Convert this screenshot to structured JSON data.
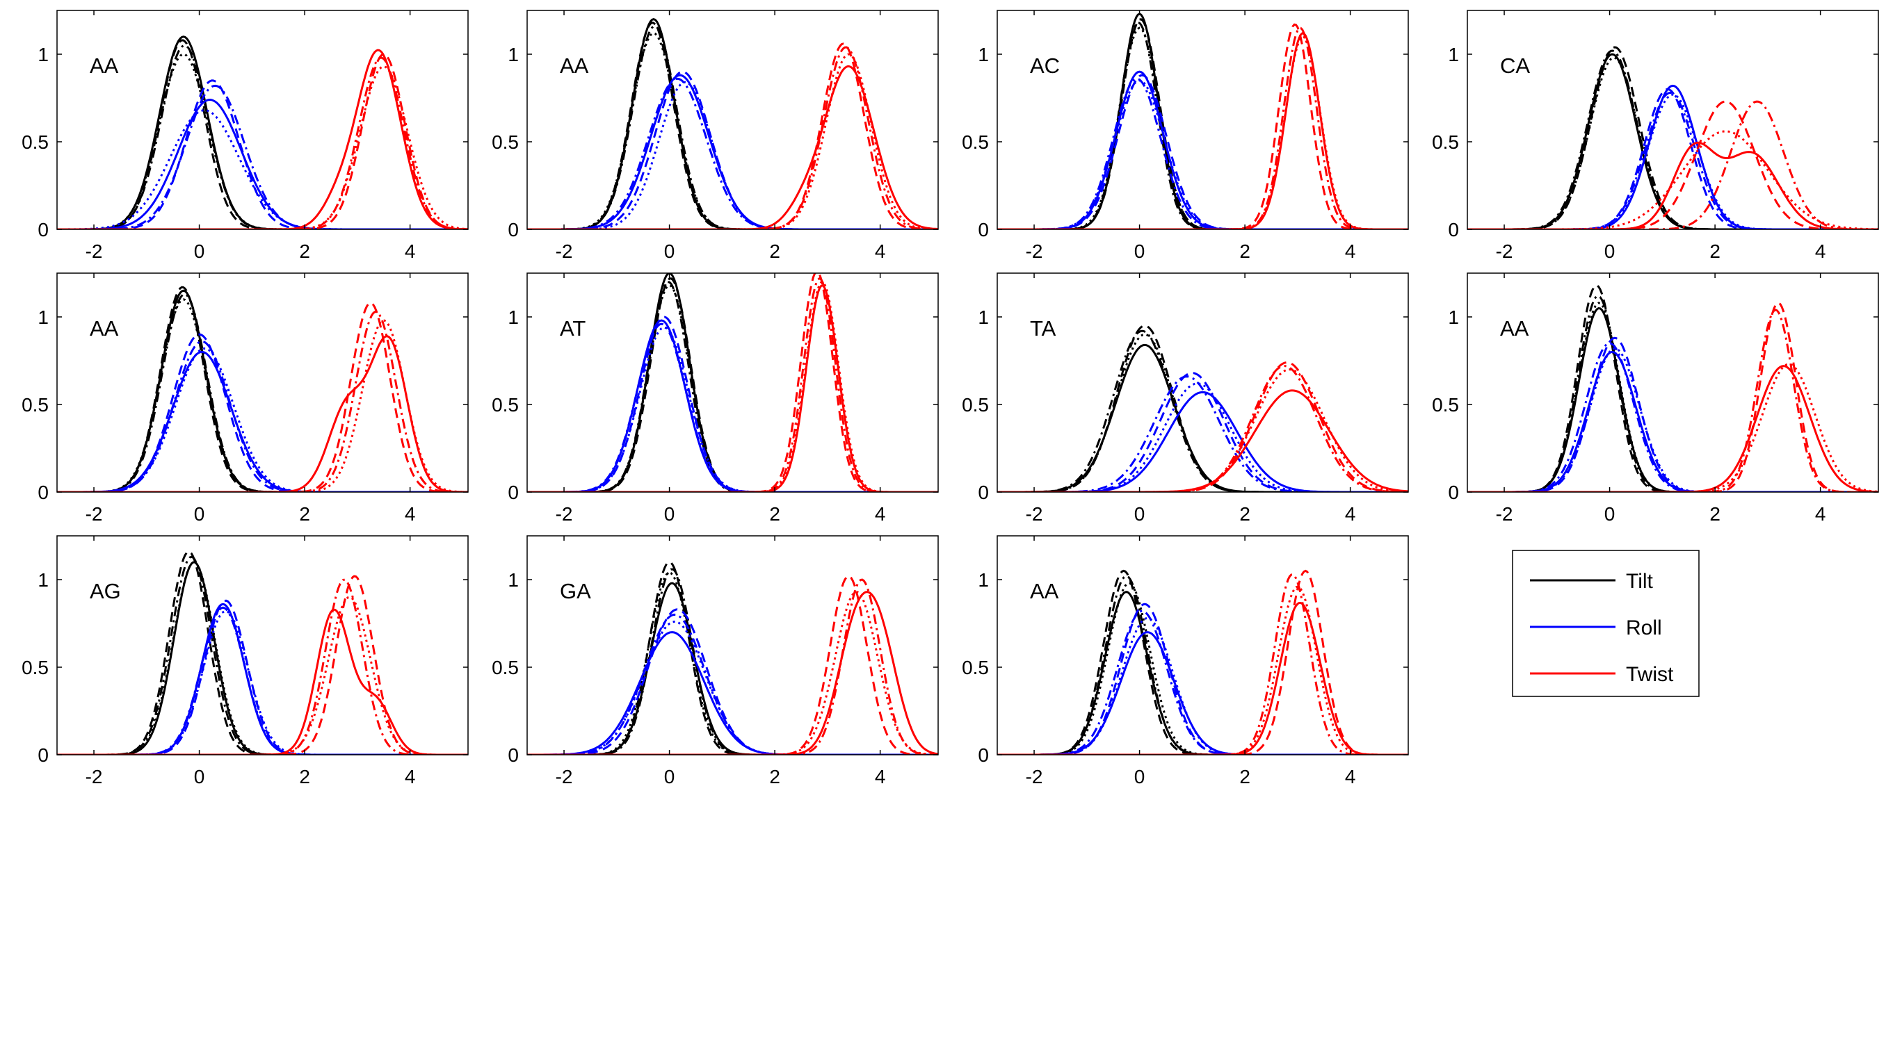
{
  "chart_data": {
    "type": "line",
    "layout": "3 rows x 4 columns of small-multiple panels (11 panels) plus a legend box",
    "xlim": [
      -2.7,
      5.1
    ],
    "ylim": [
      0,
      1.25
    ],
    "xticks": [
      -2,
      0,
      2,
      4
    ],
    "yticks": [
      0,
      0.5,
      1
    ],
    "xtick_labels": [
      "-2",
      "0",
      "2",
      "4"
    ],
    "ytick_labels": [
      "0",
      "0.5",
      "1"
    ],
    "line_styles_per_series": [
      "solid",
      "dashed",
      "dash-dot",
      "dotted"
    ],
    "grid": false,
    "legend": {
      "placement": "row 3, column 4",
      "entries": [
        {
          "label": "Tilt",
          "color": "#000000"
        },
        {
          "label": "Roll",
          "color": "#0000ff"
        },
        {
          "label": "Twist",
          "color": "#ff0000"
        }
      ]
    },
    "panels": [
      {
        "label": "AA",
        "tilt": [
          {
            "m": -0.3,
            "s": 0.45,
            "h": 1.1
          },
          {
            "m": -0.32,
            "s": 0.42,
            "h": 1.08
          },
          {
            "m": -0.28,
            "s": 0.44,
            "h": 1.05
          },
          {
            "m": -0.3,
            "s": 0.46,
            "h": 1.0
          }
        ],
        "roll": [
          {
            "m": 0.2,
            "s": 0.6,
            "h": 0.74
          },
          {
            "m": 0.25,
            "s": 0.5,
            "h": 0.85
          },
          {
            "m": 0.3,
            "s": 0.55,
            "h": 0.82
          },
          {
            "m": 0.1,
            "s": 0.65,
            "h": 0.68
          }
        ],
        "twist": [
          {
            "m": 3.4,
            "s": 0.42,
            "h": 1.02,
            "m2": 2.6,
            "s2": 0.3,
            "h2": 0.12
          },
          {
            "m": 3.5,
            "s": 0.4,
            "h": 1.0
          },
          {
            "m": 3.45,
            "s": 0.42,
            "h": 0.98
          },
          {
            "m": 3.5,
            "s": 0.45,
            "h": 0.93
          }
        ]
      },
      {
        "label": "AA",
        "tilt": [
          {
            "m": -0.3,
            "s": 0.4,
            "h": 1.2
          },
          {
            "m": -0.32,
            "s": 0.4,
            "h": 1.18
          },
          {
            "m": -0.28,
            "s": 0.41,
            "h": 1.16
          },
          {
            "m": -0.3,
            "s": 0.42,
            "h": 1.12
          }
        ],
        "roll": [
          {
            "m": 0.2,
            "s": 0.55,
            "h": 0.88
          },
          {
            "m": 0.25,
            "s": 0.52,
            "h": 0.9
          },
          {
            "m": 0.15,
            "s": 0.55,
            "h": 0.86
          },
          {
            "m": 0.3,
            "s": 0.5,
            "h": 0.84
          }
        ],
        "twist": [
          {
            "m": 3.4,
            "s": 0.48,
            "h": 0.93,
            "m2": 2.5,
            "s2": 0.3,
            "h2": 0.08
          },
          {
            "m": 3.3,
            "s": 0.4,
            "h": 1.06
          },
          {
            "m": 3.35,
            "s": 0.42,
            "h": 1.04
          },
          {
            "m": 3.4,
            "s": 0.43,
            "h": 1.0
          }
        ]
      },
      {
        "label": "AC",
        "tilt": [
          {
            "m": 0.0,
            "s": 0.35,
            "h": 1.23
          },
          {
            "m": 0.02,
            "s": 0.36,
            "h": 1.2
          },
          {
            "m": -0.02,
            "s": 0.35,
            "h": 1.18
          },
          {
            "m": 0.0,
            "s": 0.37,
            "h": 1.15
          }
        ],
        "roll": [
          {
            "m": 0.0,
            "s": 0.45,
            "h": 0.9
          },
          {
            "m": 0.05,
            "s": 0.46,
            "h": 0.88
          },
          {
            "m": -0.05,
            "s": 0.45,
            "h": 0.86
          },
          {
            "m": 0.0,
            "s": 0.47,
            "h": 0.85
          }
        ],
        "twist": [
          {
            "m": 3.1,
            "s": 0.32,
            "h": 1.12
          },
          {
            "m": 2.95,
            "s": 0.3,
            "h": 1.17
          },
          {
            "m": 3.05,
            "s": 0.31,
            "h": 1.15
          },
          {
            "m": 3.1,
            "s": 0.33,
            "h": 1.1
          }
        ]
      },
      {
        "label": "CA",
        "tilt": [
          {
            "m": 0.05,
            "s": 0.45,
            "h": 1.0
          },
          {
            "m": 0.1,
            "s": 0.45,
            "h": 1.04
          },
          {
            "m": 0.05,
            "s": 0.46,
            "h": 1.02
          },
          {
            "m": 0.08,
            "s": 0.45,
            "h": 0.98
          }
        ],
        "roll": [
          {
            "m": 1.2,
            "s": 0.45,
            "h": 0.82
          },
          {
            "m": 1.1,
            "s": 0.44,
            "h": 0.8
          },
          {
            "m": 1.15,
            "s": 0.46,
            "h": 0.78
          },
          {
            "m": 1.2,
            "s": 0.47,
            "h": 0.77
          }
        ],
        "twist": [
          {
            "m": 1.6,
            "s": 0.4,
            "h": 0.45,
            "m2": 2.7,
            "s2": 0.5,
            "h2": 0.43
          },
          {
            "m": 2.2,
            "s": 0.55,
            "h": 0.73
          },
          {
            "m": 2.8,
            "s": 0.5,
            "h": 0.73
          },
          {
            "m": 2.2,
            "s": 0.8,
            "h": 0.56
          }
        ]
      },
      {
        "label": "AA",
        "tilt": [
          {
            "m": -0.3,
            "s": 0.42,
            "h": 1.15
          },
          {
            "m": -0.32,
            "s": 0.41,
            "h": 1.17
          },
          {
            "m": -0.28,
            "s": 0.42,
            "h": 1.13
          },
          {
            "m": -0.3,
            "s": 0.43,
            "h": 1.1
          }
        ],
        "roll": [
          {
            "m": 0.05,
            "s": 0.55,
            "h": 0.8
          },
          {
            "m": 0.0,
            "s": 0.5,
            "h": 0.9
          },
          {
            "m": 0.05,
            "s": 0.52,
            "h": 0.86
          },
          {
            "m": 0.1,
            "s": 0.55,
            "h": 0.82
          }
        ],
        "twist": [
          {
            "m": 3.6,
            "s": 0.35,
            "h": 0.85,
            "m2": 2.8,
            "s2": 0.35,
            "h2": 0.48
          },
          {
            "m": 3.25,
            "s": 0.37,
            "h": 1.08
          },
          {
            "m": 3.35,
            "s": 0.38,
            "h": 1.03
          },
          {
            "m": 3.5,
            "s": 0.4,
            "h": 0.98
          }
        ]
      },
      {
        "label": "AT",
        "tilt": [
          {
            "m": 0.0,
            "s": 0.38,
            "h": 1.25
          },
          {
            "m": 0.02,
            "s": 0.38,
            "h": 1.22
          },
          {
            "m": -0.02,
            "s": 0.38,
            "h": 1.2
          },
          {
            "m": 0.0,
            "s": 0.39,
            "h": 1.18
          }
        ],
        "roll": [
          {
            "m": -0.15,
            "s": 0.45,
            "h": 0.98
          },
          {
            "m": -0.1,
            "s": 0.45,
            "h": 1.0
          },
          {
            "m": -0.15,
            "s": 0.46,
            "h": 0.96
          },
          {
            "m": -0.1,
            "s": 0.46,
            "h": 0.94
          }
        ],
        "twist": [
          {
            "m": 2.9,
            "s": 0.3,
            "h": 1.18
          },
          {
            "m": 2.8,
            "s": 0.3,
            "h": 1.26
          },
          {
            "m": 2.85,
            "s": 0.3,
            "h": 1.22
          },
          {
            "m": 2.9,
            "s": 0.31,
            "h": 1.2
          }
        ]
      },
      {
        "label": "TA",
        "tilt": [
          {
            "m": 0.1,
            "s": 0.55,
            "h": 0.84
          },
          {
            "m": 0.1,
            "s": 0.52,
            "h": 0.95
          },
          {
            "m": 0.05,
            "s": 0.54,
            "h": 0.92
          },
          {
            "m": 0.1,
            "s": 0.53,
            "h": 0.9
          }
        ],
        "roll": [
          {
            "m": 1.2,
            "s": 0.65,
            "h": 0.57
          },
          {
            "m": 1.0,
            "s": 0.6,
            "h": 0.68
          },
          {
            "m": 0.9,
            "s": 0.62,
            "h": 0.66
          },
          {
            "m": 1.1,
            "s": 0.62,
            "h": 0.62
          }
        ],
        "twist": [
          {
            "m": 2.9,
            "s": 0.7,
            "h": 0.58
          },
          {
            "m": 2.8,
            "s": 0.6,
            "h": 0.74
          },
          {
            "m": 2.75,
            "s": 0.6,
            "h": 0.72
          },
          {
            "m": 2.85,
            "s": 0.65,
            "h": 0.7
          }
        ]
      },
      {
        "label": "AA",
        "tilt": [
          {
            "m": -0.2,
            "s": 0.38,
            "h": 1.05
          },
          {
            "m": -0.25,
            "s": 0.36,
            "h": 1.18
          },
          {
            "m": -0.22,
            "s": 0.37,
            "h": 1.12
          },
          {
            "m": -0.2,
            "s": 0.38,
            "h": 1.08
          }
        ],
        "roll": [
          {
            "m": 0.05,
            "s": 0.45,
            "h": 0.8
          },
          {
            "m": 0.1,
            "s": 0.44,
            "h": 0.88
          },
          {
            "m": 0.0,
            "s": 0.45,
            "h": 0.85
          },
          {
            "m": 0.1,
            "s": 0.46,
            "h": 0.82
          }
        ],
        "twist": [
          {
            "m": 3.3,
            "s": 0.5,
            "h": 0.72
          },
          {
            "m": 3.2,
            "s": 0.33,
            "h": 1.08
          },
          {
            "m": 3.15,
            "s": 0.34,
            "h": 1.04
          },
          {
            "m": 3.4,
            "s": 0.5,
            "h": 0.73
          }
        ]
      },
      {
        "label": "AG",
        "tilt": [
          {
            "m": -0.1,
            "s": 0.38,
            "h": 1.1
          },
          {
            "m": -0.2,
            "s": 0.37,
            "h": 1.16
          },
          {
            "m": -0.15,
            "s": 0.38,
            "h": 1.13
          },
          {
            "m": -0.1,
            "s": 0.39,
            "h": 1.1
          }
        ],
        "roll": [
          {
            "m": 0.45,
            "s": 0.4,
            "h": 0.86
          },
          {
            "m": 0.5,
            "s": 0.4,
            "h": 0.88
          },
          {
            "m": 0.45,
            "s": 0.41,
            "h": 0.84
          },
          {
            "m": 0.5,
            "s": 0.42,
            "h": 0.82
          }
        ],
        "twist": [
          {
            "m": 2.55,
            "s": 0.32,
            "h": 0.82,
            "m2": 3.35,
            "s2": 0.3,
            "h2": 0.3
          },
          {
            "m": 2.95,
            "s": 0.35,
            "h": 1.02
          },
          {
            "m": 2.75,
            "s": 0.35,
            "h": 1.0
          },
          {
            "m": 2.85,
            "s": 0.4,
            "h": 0.9
          }
        ]
      },
      {
        "label": "GA",
        "tilt": [
          {
            "m": 0.05,
            "s": 0.4,
            "h": 0.98
          },
          {
            "m": 0.0,
            "s": 0.37,
            "h": 1.1
          },
          {
            "m": 0.05,
            "s": 0.38,
            "h": 1.06
          },
          {
            "m": 0.0,
            "s": 0.39,
            "h": 1.04
          }
        ],
        "roll": [
          {
            "m": 0.05,
            "s": 0.6,
            "h": 0.7
          },
          {
            "m": 0.15,
            "s": 0.55,
            "h": 0.83
          },
          {
            "m": 0.1,
            "s": 0.57,
            "h": 0.8
          },
          {
            "m": 0.1,
            "s": 0.58,
            "h": 0.76
          }
        ],
        "twist": [
          {
            "m": 3.5,
            "s": 0.35,
            "h": 0.6,
            "m2": 4.0,
            "s2": 0.35,
            "h2": 0.6
          },
          {
            "m": 3.4,
            "s": 0.35,
            "h": 1.02
          },
          {
            "m": 3.65,
            "s": 0.35,
            "h": 1.0
          },
          {
            "m": 3.55,
            "s": 0.4,
            "h": 0.93
          }
        ]
      },
      {
        "label": "AA",
        "tilt": [
          {
            "m": -0.25,
            "s": 0.4,
            "h": 0.93
          },
          {
            "m": -0.3,
            "s": 0.38,
            "h": 1.05
          },
          {
            "m": -0.25,
            "s": 0.39,
            "h": 1.02
          },
          {
            "m": -0.2,
            "s": 0.4,
            "h": 0.98
          }
        ],
        "roll": [
          {
            "m": 0.15,
            "s": 0.5,
            "h": 0.7
          },
          {
            "m": 0.1,
            "s": 0.45,
            "h": 0.86
          },
          {
            "m": 0.05,
            "s": 0.47,
            "h": 0.82
          },
          {
            "m": 0.15,
            "s": 0.48,
            "h": 0.78
          }
        ],
        "twist": [
          {
            "m": 3.0,
            "s": 0.35,
            "h": 0.8,
            "m2": 3.4,
            "s2": 0.3,
            "h2": 0.15
          },
          {
            "m": 3.15,
            "s": 0.33,
            "h": 1.05
          },
          {
            "m": 2.9,
            "s": 0.33,
            "h": 1.03
          },
          {
            "m": 3.0,
            "s": 0.36,
            "h": 0.96
          }
        ]
      }
    ]
  }
}
